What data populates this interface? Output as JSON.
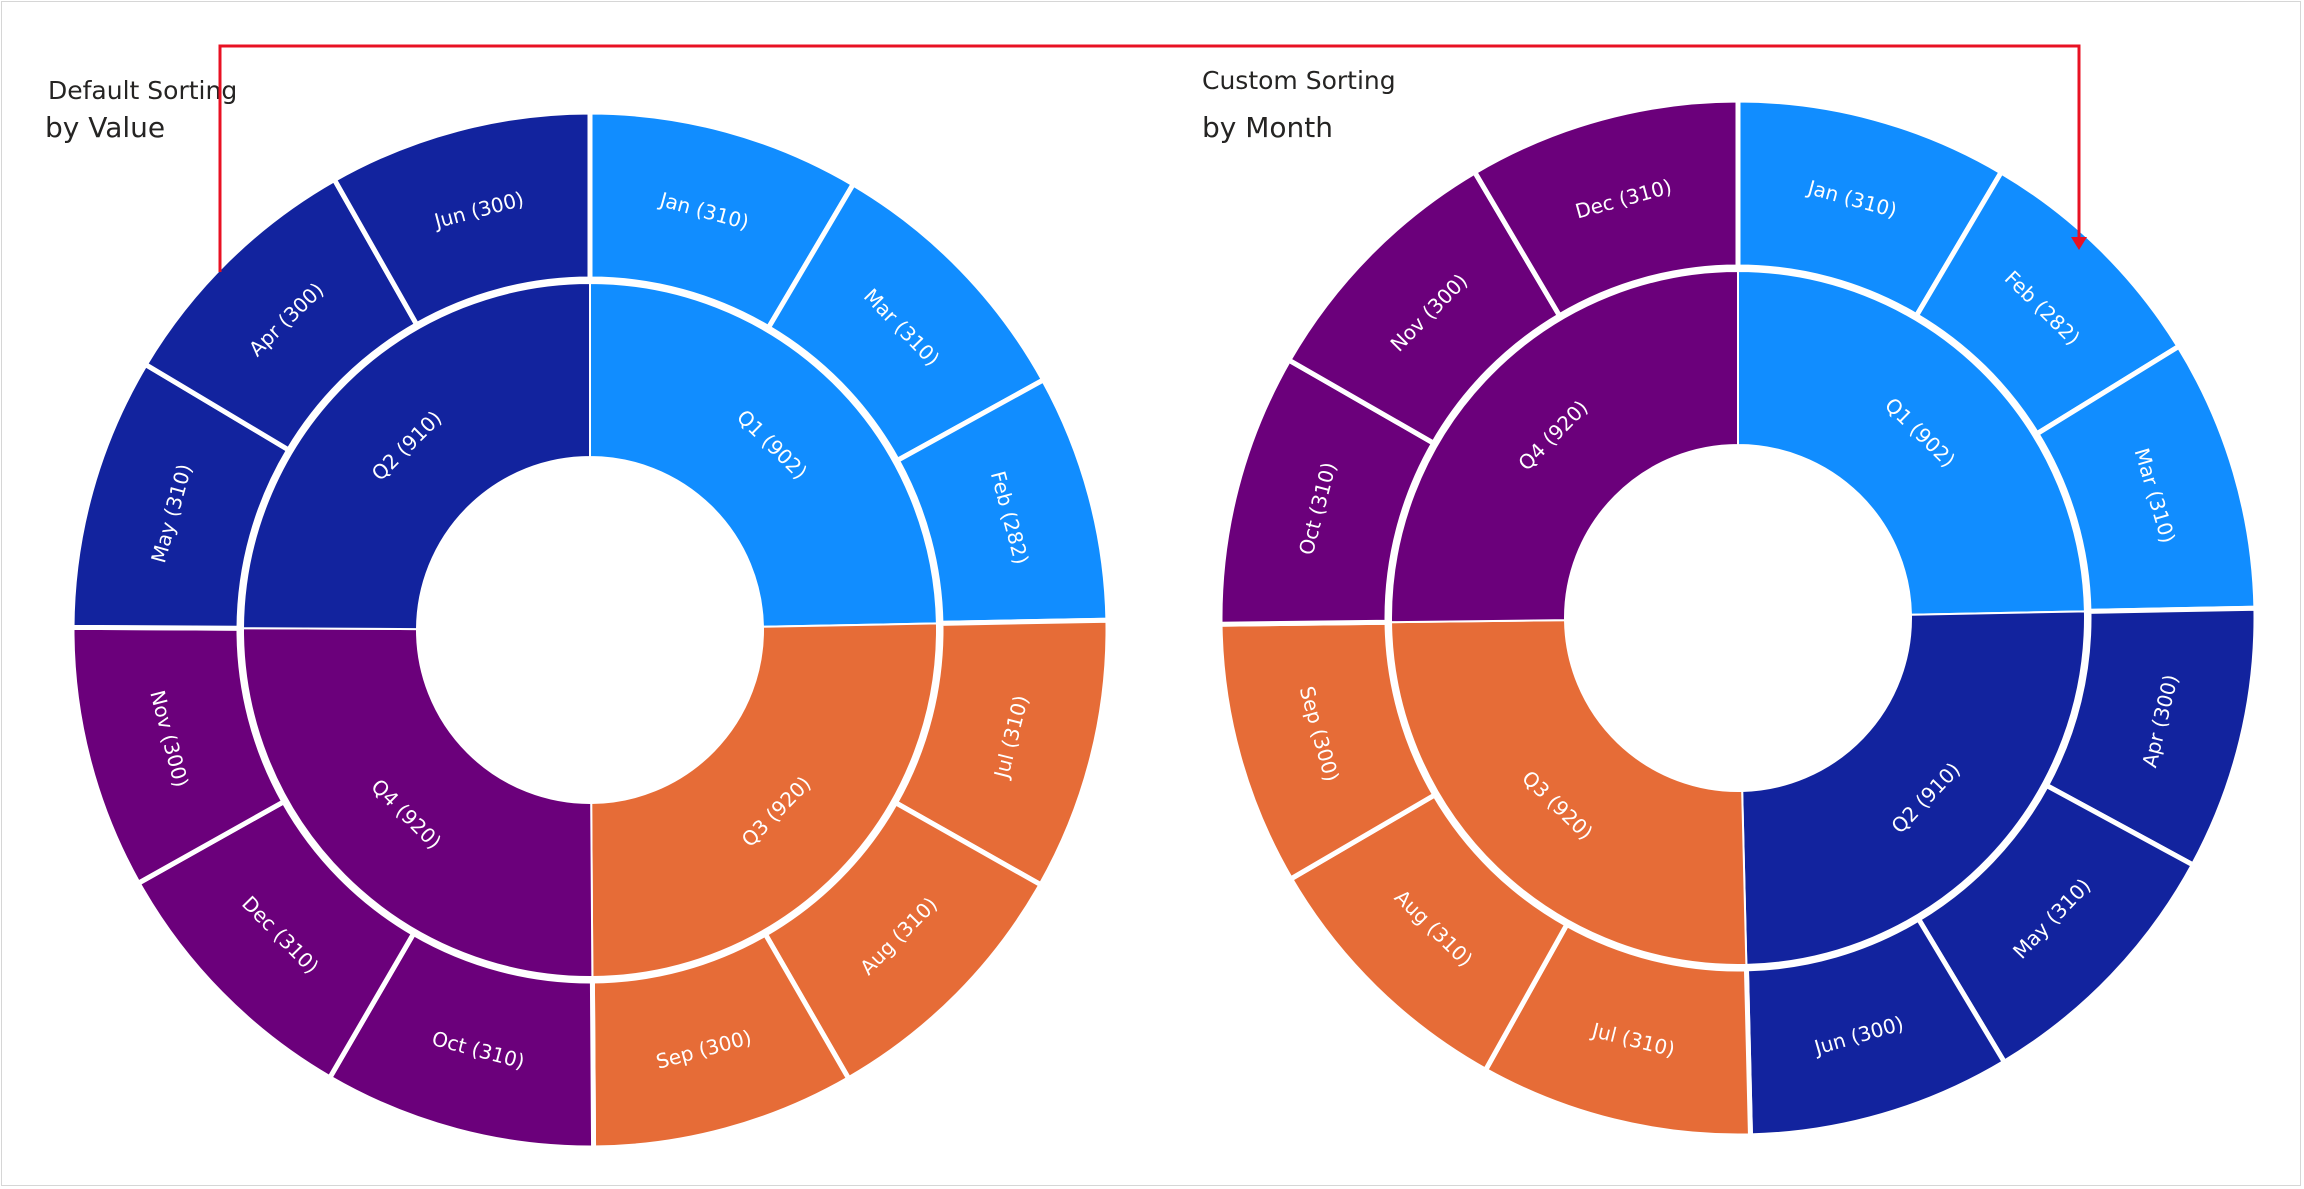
{
  "chart_data": [
    {
      "type": "sunburst",
      "title": "Default Sorting",
      "subtitle": "by Value",
      "inner_ring": [
        {
          "label": "Q1 (902)",
          "quarter": "Q1",
          "value": 902
        },
        {
          "label": "Q3 (920)",
          "quarter": "Q3",
          "value": 920
        },
        {
          "label": "Q4 (920)",
          "quarter": "Q4",
          "value": 920
        },
        {
          "label": "Q2 (910)",
          "quarter": "Q2",
          "value": 910
        }
      ],
      "outer_ring": [
        {
          "label": "Jan (310)",
          "quarter": "Q1",
          "value": 310
        },
        {
          "label": "Mar (310)",
          "quarter": "Q1",
          "value": 310
        },
        {
          "label": "Feb (282)",
          "quarter": "Q1",
          "value": 282
        },
        {
          "label": "Jul (310)",
          "quarter": "Q3",
          "value": 310
        },
        {
          "label": "Aug (310)",
          "quarter": "Q3",
          "value": 310
        },
        {
          "label": "Sep (300)",
          "quarter": "Q3",
          "value": 300
        },
        {
          "label": "Oct (310)",
          "quarter": "Q4",
          "value": 310
        },
        {
          "label": "Dec (310)",
          "quarter": "Q4",
          "value": 310
        },
        {
          "label": "Nov (300)",
          "quarter": "Q4",
          "value": 300
        },
        {
          "label": "May (310)",
          "quarter": "Q2",
          "value": 310
        },
        {
          "label": "Apr (300)",
          "quarter": "Q2",
          "value": 300
        },
        {
          "label": "Jun (300)",
          "quarter": "Q2",
          "value": 300
        }
      ]
    },
    {
      "type": "sunburst",
      "title": "Custom Sorting",
      "subtitle": "by Month",
      "inner_ring": [
        {
          "label": "Q1 (902)",
          "quarter": "Q1",
          "value": 902
        },
        {
          "label": "Q2 (910)",
          "quarter": "Q2",
          "value": 910
        },
        {
          "label": "Q3 (920)",
          "quarter": "Q3",
          "value": 920
        },
        {
          "label": "Q4 (920)",
          "quarter": "Q4",
          "value": 920
        }
      ],
      "outer_ring": [
        {
          "label": "Jan (310)",
          "quarter": "Q1",
          "value": 310
        },
        {
          "label": "Feb (282)",
          "quarter": "Q1",
          "value": 282
        },
        {
          "label": "Mar (310)",
          "quarter": "Q1",
          "value": 310
        },
        {
          "label": "Apr (300)",
          "quarter": "Q2",
          "value": 300
        },
        {
          "label": "May (310)",
          "quarter": "Q2",
          "value": 310
        },
        {
          "label": "Jun (300)",
          "quarter": "Q2",
          "value": 300
        },
        {
          "label": "Jul (310)",
          "quarter": "Q3",
          "value": 310
        },
        {
          "label": "Aug (310)",
          "quarter": "Q3",
          "value": 310
        },
        {
          "label": "Sep (300)",
          "quarter": "Q3",
          "value": 300
        },
        {
          "label": "Oct (310)",
          "quarter": "Q4",
          "value": 310
        },
        {
          "label": "Nov (300)",
          "quarter": "Q4",
          "value": 300
        },
        {
          "label": "Dec (310)",
          "quarter": "Q4",
          "value": 310
        }
      ]
    }
  ],
  "colors": {
    "Q1": "#118dff",
    "Q2": "#12239e",
    "Q3": "#e66c37",
    "Q4": "#6b007b",
    "arrow": "#e81123",
    "separator": "#ffffff"
  }
}
